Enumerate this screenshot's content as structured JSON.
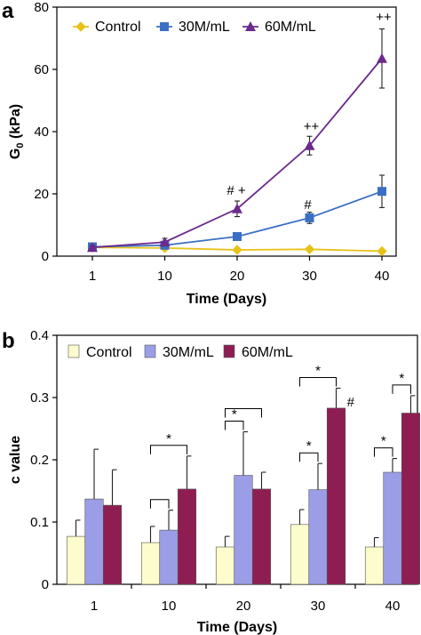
{
  "chart_data": [
    {
      "type": "line",
      "panel_label": "a",
      "ylabel_main": "G",
      "ylabel_sub": "0",
      "ylabel_unit": " (kPa)",
      "xlabel": "Time (Days)",
      "categories": [
        "1",
        "10",
        "20",
        "30",
        "40"
      ],
      "ylim": [
        0,
        80
      ],
      "yticks": [
        "0",
        "20",
        "40",
        "60",
        "80"
      ],
      "grid": false,
      "legend_position": "top",
      "series": [
        {
          "name": "Control",
          "values": [
            2.8,
            2.6,
            2.0,
            2.2,
            1.6
          ],
          "errors": [
            0.3,
            0.3,
            0.3,
            0.3,
            0.3
          ],
          "color": "#e8c21a",
          "marker": "diamond"
        },
        {
          "name": "30M/mL",
          "values": [
            3.0,
            3.5,
            6.3,
            12.3,
            20.8
          ],
          "errors": [
            0.6,
            0.8,
            1.0,
            1.8,
            5.2
          ],
          "color": "#3b6fc4",
          "marker": "square"
        },
        {
          "name": "60M/mL",
          "values": [
            2.8,
            4.5,
            15.2,
            35.5,
            63.5
          ],
          "errors": [
            0.6,
            1.2,
            2.5,
            3.0,
            9.5
          ],
          "color": "#6b2a8c",
          "marker": "triangle"
        }
      ],
      "annotations": [
        {
          "text": "# +",
          "category": "20"
        },
        {
          "text": "#",
          "category": "30"
        },
        {
          "text": "++",
          "category": "30"
        },
        {
          "text": "++",
          "category": "40"
        }
      ]
    },
    {
      "type": "bar",
      "panel_label": "b",
      "ylabel": "c value",
      "xlabel": "Time (Days)",
      "categories": [
        "1",
        "10",
        "20",
        "30",
        "40"
      ],
      "ylim": [
        0,
        0.4
      ],
      "yticks": [
        "0",
        "0.1",
        "0.2",
        "0.3",
        "0.4"
      ],
      "grid": false,
      "legend_position": "top",
      "series": [
        {
          "name": "Control",
          "values": [
            0.077,
            0.067,
            0.06,
            0.096,
            0.06
          ],
          "errors": [
            0.026,
            0.026,
            0.017,
            0.024,
            0.015
          ],
          "color": "#fdfccc"
        },
        {
          "name": "30M/mL",
          "values": [
            0.137,
            0.087,
            0.175,
            0.152,
            0.18
          ],
          "errors": [
            0.08,
            0.032,
            0.07,
            0.042,
            0.022
          ],
          "color": "#9b9ee6"
        },
        {
          "name": "60M/mL",
          "values": [
            0.127,
            0.153,
            0.153,
            0.283,
            0.275
          ],
          "errors": [
            0.057,
            0.053,
            0.027,
            0.032,
            0.028
          ],
          "color": "#8e1e52"
        }
      ],
      "significance": [
        {
          "category": "10",
          "groups": [
            0,
            1
          ],
          "text": ""
        },
        {
          "category": "10",
          "groups": [
            0,
            2
          ],
          "text": "*"
        },
        {
          "category": "20",
          "groups": [
            0,
            1
          ],
          "text": "*"
        },
        {
          "category": "20",
          "groups": [
            0,
            2
          ],
          "text": ""
        },
        {
          "category": "30",
          "groups": [
            0,
            1
          ],
          "text": "*"
        },
        {
          "category": "30",
          "groups": [
            0,
            2
          ],
          "text": "*"
        },
        {
          "category": "40",
          "groups": [
            0,
            1
          ],
          "text": "*"
        },
        {
          "category": "40",
          "groups": [
            1,
            2
          ],
          "text": "*"
        }
      ],
      "annotations": [
        {
          "text": "#",
          "category": "30",
          "group": 2
        }
      ]
    }
  ]
}
